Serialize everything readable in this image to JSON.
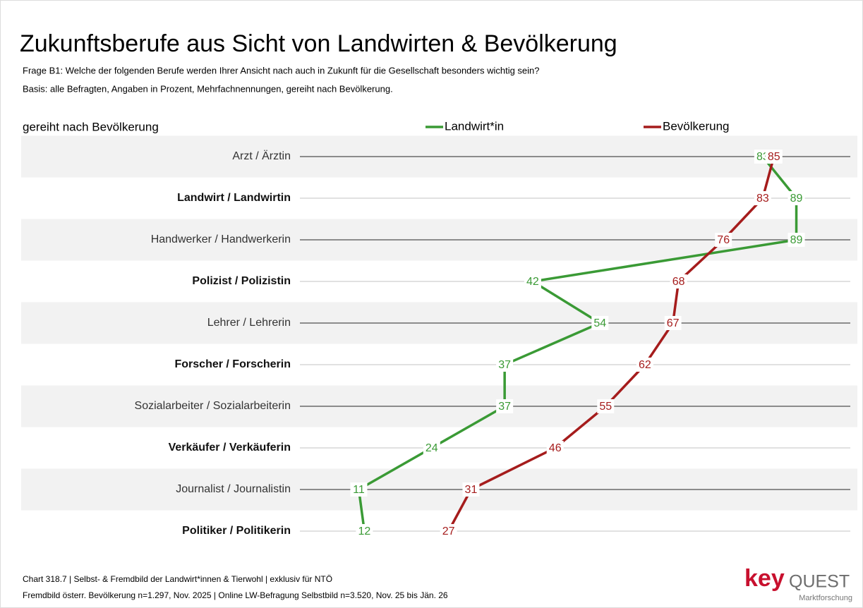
{
  "chart_data": {
    "type": "line",
    "title": "Zukunftsberufe aus Sicht von Landwirten & Bevölkerung",
    "subtitle": [
      "Frage B1: Welche der folgenden Berufe werden Ihrer Ansicht nach auch in Zukunft für die Gesellschaft besonders wichtig sein?",
      "Basis: alle Befragten, Angaben in Prozent, Mehrfachnennungen, gereiht nach Bevölkerung."
    ],
    "axis_label": "gereiht nach Bevölkerung",
    "categories": [
      "Arzt / Ärztin",
      "Landwirt / Landwirtin",
      "Handwerker / Handwerkerin",
      "Polizist / Polizistin",
      "Lehrer / Lehrerin",
      "Forscher / Forscherin",
      "Sozialarbeiter / Sozialarbeiterin",
      "Verkäufer / Verkäuferin",
      "Journalist / Journalistin",
      "Politiker / Politikerin"
    ],
    "series": [
      {
        "name": "Landwirt*in",
        "color": "#3a9a35",
        "values": [
          83,
          89,
          89,
          42,
          54,
          37,
          37,
          24,
          11,
          12
        ]
      },
      {
        "name": "Bevölkerung",
        "color": "#a51c1c",
        "values": [
          85,
          83,
          76,
          68,
          67,
          62,
          55,
          46,
          31,
          27
        ]
      }
    ],
    "xlim": [
      0,
      100
    ],
    "footer": [
      "Chart 318.7 | Selbst- & Fremdbild der Landwirt*innen &  Tierwohl | exklusiv für NTÖ",
      "Fremdbild österr. Bevölkerung  n=1.297, Nov. 2025 | Online LW-Befragung Selbstbild n=3.520, Nov. 25 bis Jän. 26"
    ],
    "logo": [
      "key",
      "QUEST",
      "Marktforschung"
    ]
  }
}
